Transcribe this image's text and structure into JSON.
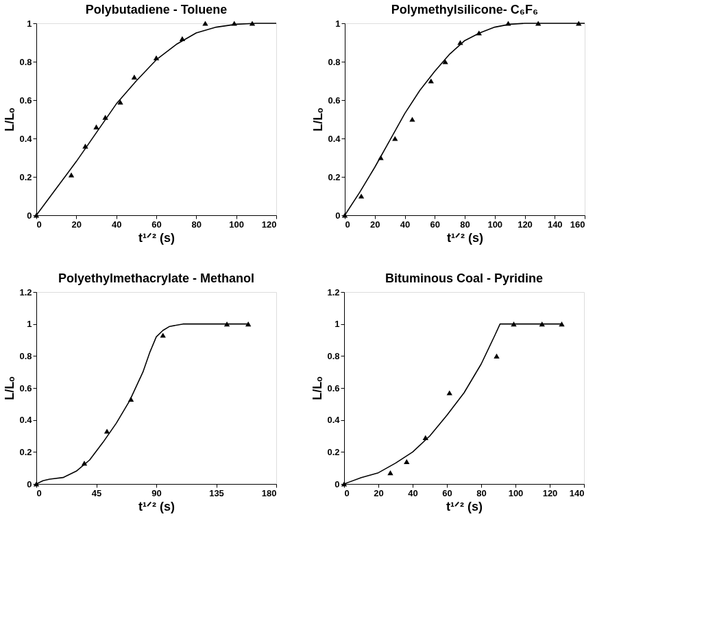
{
  "chart_data": [
    {
      "type": "scatter",
      "title": "Polybutadiene  -  Toluene",
      "xlabel": "t¹ᐟ² (s)",
      "ylabel": "L/Lₒ",
      "xlim": [
        0,
        120
      ],
      "xticks": [
        0,
        20,
        40,
        60,
        80,
        100,
        120
      ],
      "ylim": [
        0,
        1
      ],
      "yticks": [
        0,
        0.2,
        0.4,
        0.6,
        0.8,
        1
      ],
      "grid": false,
      "series": [
        {
          "marker": "triangle",
          "color": "#000000",
          "x": [
            0,
            17.5,
            24.5,
            30,
            34.5,
            42,
            49,
            60,
            73,
            84.5,
            99,
            108
          ],
          "values": [
            0,
            0.21,
            0.36,
            0.46,
            0.51,
            0.59,
            0.72,
            0.82,
            0.92,
            1.0,
            1.0,
            1.0
          ]
        },
        {
          "type": "line",
          "color": "#000000",
          "line_style": "solid",
          "x": [
            0,
            10,
            20,
            30,
            40,
            50,
            60,
            70,
            80,
            90,
            100,
            110,
            120
          ],
          "values": [
            0,
            0.14,
            0.28,
            0.43,
            0.58,
            0.7,
            0.81,
            0.89,
            0.95,
            0.98,
            0.995,
            1.0,
            1.0
          ]
        }
      ]
    },
    {
      "type": "scatter",
      "title": "Polymethylsilicone-  C₆F₆",
      "xlabel": "t¹ᐟ² (s)",
      "ylabel": "L/Lₒ",
      "xlim": [
        0,
        160
      ],
      "xticks": [
        0,
        20,
        40,
        60,
        80,
        100,
        120,
        140,
        160
      ],
      "ylim": [
        0,
        1
      ],
      "yticks": [
        0,
        0.2,
        0.4,
        0.6,
        0.8,
        1
      ],
      "grid": false,
      "series": [
        {
          "marker": "triangle",
          "color": "#000000",
          "x": [
            0,
            11,
            24,
            33.5,
            45,
            57.5,
            67,
            77,
            89.5,
            109,
            129,
            156
          ],
          "values": [
            0,
            0.1,
            0.3,
            0.4,
            0.5,
            0.7,
            0.8,
            0.9,
            0.95,
            1.0,
            1.0,
            1.0
          ]
        },
        {
          "type": "line",
          "color": "#000000",
          "line_style": "solid",
          "x": [
            0,
            10,
            20,
            30,
            40,
            50,
            60,
            70,
            80,
            90,
            100,
            110,
            120,
            160
          ],
          "values": [
            0,
            0.12,
            0.25,
            0.39,
            0.53,
            0.65,
            0.75,
            0.84,
            0.91,
            0.95,
            0.98,
            0.995,
            1.0,
            1.0
          ]
        }
      ]
    },
    {
      "type": "scatter",
      "title": "Polyethylmethacrylate   -   Methanol",
      "xlabel": "t¹ᐟ² (s)",
      "ylabel": "L/Lₒ",
      "xlim": [
        0,
        180
      ],
      "xticks": [
        0,
        45,
        90,
        135,
        180
      ],
      "ylim": [
        0,
        1.2
      ],
      "yticks": [
        0,
        0.2,
        0.4,
        0.6,
        0.8,
        1,
        1.2
      ],
      "grid": false,
      "series": [
        {
          "marker": "triangle",
          "color": "#000000",
          "x": [
            0,
            36,
            53,
            71,
            95,
            143,
            159
          ],
          "values": [
            0,
            0.13,
            0.33,
            0.53,
            0.93,
            1.0,
            1.0
          ]
        },
        {
          "type": "line",
          "color": "#000000",
          "line_style": "solid",
          "x": [
            0,
            5,
            10,
            20,
            30,
            40,
            50,
            60,
            70,
            80,
            85,
            90,
            95,
            100,
            110,
            160
          ],
          "values": [
            0,
            0.02,
            0.03,
            0.04,
            0.08,
            0.15,
            0.26,
            0.38,
            0.52,
            0.7,
            0.82,
            0.92,
            0.96,
            0.985,
            1.0,
            1.0
          ]
        }
      ]
    },
    {
      "type": "scatter",
      "title": "Bituminous  Coal  -  Pyridine",
      "xlabel": "t¹ᐟ² (s)",
      "ylabel": "L/Lₒ",
      "xlim": [
        0,
        140
      ],
      "xticks": [
        0,
        20,
        40,
        60,
        80,
        100,
        120,
        140
      ],
      "ylim": [
        0,
        1.2
      ],
      "yticks": [
        0,
        0.2,
        0.4,
        0.6,
        0.8,
        1,
        1.2
      ],
      "grid": false,
      "series": [
        {
          "marker": "triangle",
          "color": "#000000",
          "x": [
            0,
            27,
            36.5,
            47.5,
            61.5,
            89,
            99,
            115.5,
            127
          ],
          "values": [
            0,
            0.07,
            0.14,
            0.29,
            0.57,
            0.8,
            1.0,
            1.0,
            1.0
          ]
        },
        {
          "type": "line",
          "color": "#000000",
          "line_style": "solid",
          "x": [
            0,
            10,
            20,
            30,
            40,
            50,
            60,
            70,
            80,
            88,
            91,
            127
          ],
          "values": [
            0,
            0.04,
            0.07,
            0.13,
            0.2,
            0.3,
            0.43,
            0.57,
            0.75,
            0.93,
            1.0,
            1.0
          ]
        }
      ]
    }
  ]
}
